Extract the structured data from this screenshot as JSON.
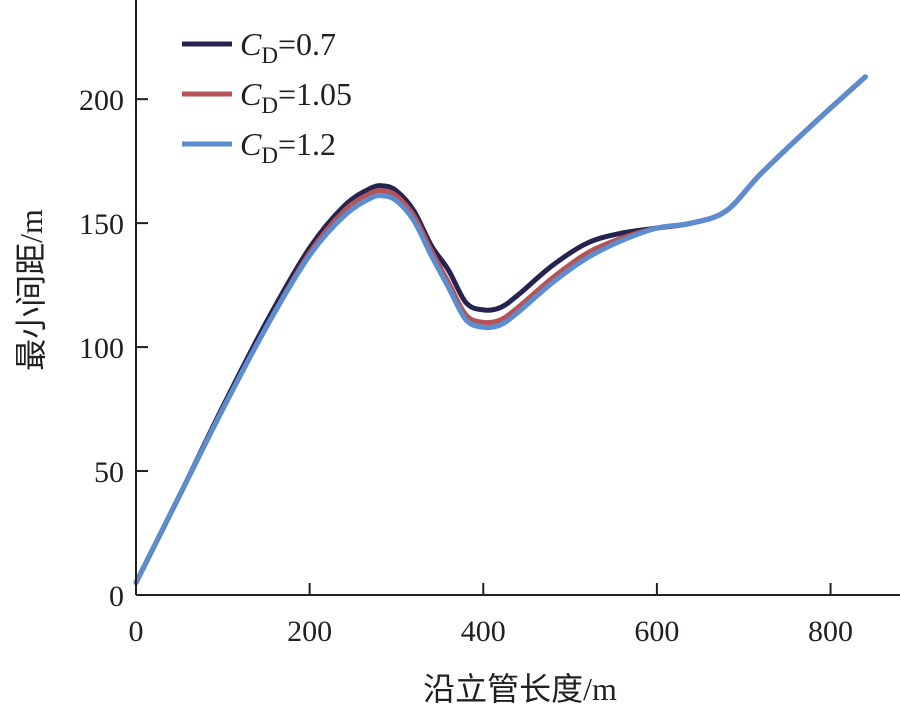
{
  "chart_data": {
    "type": "line",
    "xlabel": "沿立管长度/m",
    "ylabel": "最小间距/m",
    "xlim": [
      0,
      880
    ],
    "ylim": [
      0,
      240
    ],
    "xticks": [
      "0",
      "200",
      "400",
      "600",
      "800"
    ],
    "yticks": [
      "0",
      "50",
      "100",
      "150",
      "200"
    ],
    "grid": false,
    "legend_position": "top-left",
    "series": [
      {
        "name": "CD=0.7",
        "legend": {
          "symbol": "C",
          "subscript": "D",
          "value": "=0.7"
        },
        "color": "#262350",
        "x": [
          0,
          50,
          100,
          150,
          200,
          240,
          270,
          285,
          300,
          320,
          340,
          360,
          380,
          400,
          420,
          440,
          480,
          520,
          560,
          600,
          640,
          680,
          720,
          780,
          840
        ],
        "y": [
          5,
          40,
          76,
          110,
          140,
          157,
          164,
          165,
          163,
          155,
          141,
          131,
          118,
          115,
          116,
          121,
          133,
          142,
          146,
          148,
          150,
          155,
          170,
          190,
          209
        ]
      },
      {
        "name": "CD=1.05",
        "legend": {
          "symbol": "C",
          "subscript": "D",
          "value": "=1.05"
        },
        "color": "#b55457",
        "x": [
          0,
          50,
          100,
          150,
          200,
          240,
          270,
          285,
          300,
          320,
          340,
          360,
          380,
          400,
          420,
          440,
          480,
          520,
          560,
          600,
          640,
          680,
          720,
          780,
          840
        ],
        "y": [
          5,
          40,
          75,
          108,
          138,
          155,
          162,
          163,
          161,
          153,
          139,
          126,
          113,
          110,
          111,
          116,
          128,
          138,
          144,
          148,
          150,
          155,
          170,
          190,
          209
        ]
      },
      {
        "name": "CD=1.2",
        "legend": {
          "symbol": "C",
          "subscript": "D",
          "value": "=1.2"
        },
        "color": "#5b8dd0",
        "x": [
          0,
          50,
          100,
          150,
          200,
          240,
          270,
          285,
          300,
          320,
          340,
          360,
          380,
          400,
          420,
          440,
          480,
          520,
          560,
          600,
          640,
          680,
          720,
          780,
          840
        ],
        "y": [
          5,
          40,
          75,
          108,
          137,
          153,
          160,
          161,
          159,
          151,
          137,
          124,
          111,
          108,
          109,
          114,
          126,
          136,
          143,
          148,
          150,
          155,
          170,
          190,
          209
        ]
      }
    ]
  }
}
